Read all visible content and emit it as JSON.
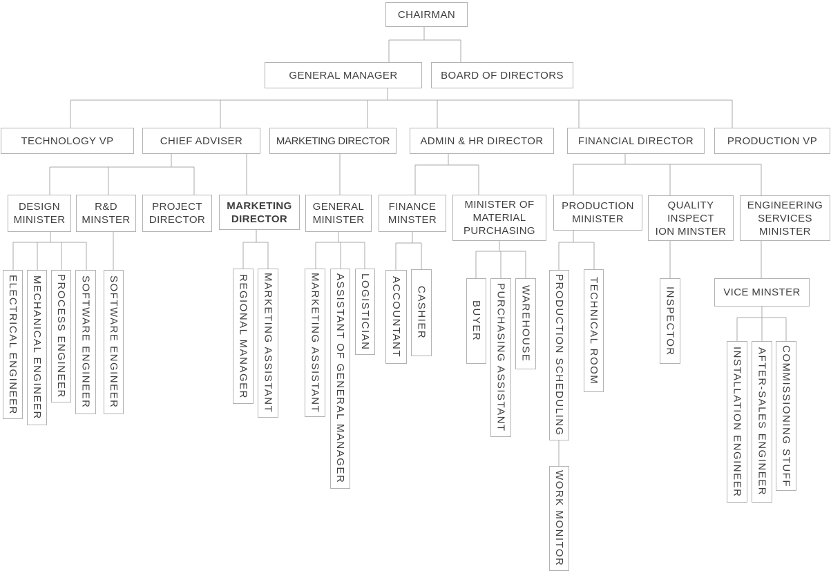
{
  "diagram": {
    "type": "org-chart",
    "colors": {
      "background": "#ffffff",
      "box_border": "#b2b2b2",
      "connector_line": "#a8a8a8",
      "text": "#3f3f3f"
    },
    "nodes": [
      {
        "id": "chairman",
        "label": "CHAIRMAN",
        "orientation": "horizontal"
      },
      {
        "id": "general-manager",
        "label": "GENERAL MANAGER",
        "orientation": "horizontal"
      },
      {
        "id": "board-of-directors",
        "label": "BOARD OF DIRECTORS",
        "orientation": "horizontal"
      },
      {
        "id": "technology-vp",
        "label": "TECHNOLOGY VP",
        "orientation": "horizontal"
      },
      {
        "id": "chief-adviser",
        "label": "CHIEF ADVISER",
        "orientation": "horizontal"
      },
      {
        "id": "marketing-director-top",
        "label": "MARKETING DIRECTOR",
        "orientation": "horizontal",
        "condensed": true
      },
      {
        "id": "admin-hr-director",
        "label": "ADMIN & HR DIRECTOR",
        "orientation": "horizontal"
      },
      {
        "id": "financial-director",
        "label": "FINANCIAL DIRECTOR",
        "orientation": "horizontal"
      },
      {
        "id": "production-vp",
        "label": "PRODUCTION VP",
        "orientation": "horizontal"
      },
      {
        "id": "design-minister",
        "label": "DESIGN\nMINISTER",
        "orientation": "horizontal"
      },
      {
        "id": "rd-minster",
        "label": "R&D\nMINSTER",
        "orientation": "horizontal"
      },
      {
        "id": "project-director",
        "label": "PROJECT\nDIRECTOR",
        "orientation": "horizontal"
      },
      {
        "id": "marketing-director",
        "label": "MARKETING\nDIRECTOR",
        "orientation": "horizontal",
        "bold": true
      },
      {
        "id": "general-minister",
        "label": "GENERAL\nMINISTER",
        "orientation": "horizontal"
      },
      {
        "id": "finance-minster",
        "label": "FINANCE\nMINSTER",
        "orientation": "horizontal"
      },
      {
        "id": "minister-of-material-purchasing",
        "label": "MINISTER OF\nMATERIAL\nPURCHASING",
        "orientation": "horizontal"
      },
      {
        "id": "production-minister",
        "label": "PRODUCTION\nMINISTER",
        "orientation": "horizontal"
      },
      {
        "id": "quality-inspection-minster",
        "label": "QUALITY\nINSPECT\nION MINSTER",
        "orientation": "horizontal"
      },
      {
        "id": "engineering-services-minister",
        "label": "ENGINEERING\nSERVICES\nMINISTER",
        "orientation": "horizontal"
      },
      {
        "id": "vice-minster",
        "label": "VICE MINSTER",
        "orientation": "horizontal"
      },
      {
        "id": "electrical-engineer",
        "label": "ELECTRICAL ENGINEER",
        "orientation": "vertical"
      },
      {
        "id": "mechanical-engineer",
        "label": "MECHANICAL ENGINEER",
        "orientation": "vertical"
      },
      {
        "id": "process-engineer",
        "label": "PROCESS ENGINEER",
        "orientation": "vertical"
      },
      {
        "id": "software-engineer-1",
        "label": "SOFTWARE ENGINEER",
        "orientation": "vertical"
      },
      {
        "id": "software-engineer-2",
        "label": "SOFTWARE ENGINEER",
        "orientation": "vertical"
      },
      {
        "id": "regional-manager",
        "label": "REGIONAL MANAGER",
        "orientation": "vertical"
      },
      {
        "id": "marketing-assistant-1",
        "label": "MARKETING ASSISTANT",
        "orientation": "vertical"
      },
      {
        "id": "marketing-assistant-2",
        "label": "MARKETING ASSISTANT",
        "orientation": "vertical"
      },
      {
        "id": "assistant-of-general-manager",
        "label": "ASSISTANT OF GENERAL MANAGER",
        "orientation": "vertical"
      },
      {
        "id": "logistician",
        "label": "LOGISTICIAN",
        "orientation": "vertical"
      },
      {
        "id": "accountant",
        "label": "ACCOUNTANT",
        "orientation": "vertical"
      },
      {
        "id": "cashier",
        "label": "CASHIER",
        "orientation": "vertical"
      },
      {
        "id": "buyer",
        "label": "BUYER",
        "orientation": "vertical"
      },
      {
        "id": "purchasing-assistant",
        "label": "PURCHASING ASSISTANT",
        "orientation": "vertical"
      },
      {
        "id": "warehouse",
        "label": "WAREHOUSE",
        "orientation": "vertical"
      },
      {
        "id": "production-scheduling",
        "label": "PRODUCTION SCHEDULING",
        "orientation": "vertical"
      },
      {
        "id": "technical-room",
        "label": "TECHNICAL ROOM",
        "orientation": "vertical"
      },
      {
        "id": "work-monitor",
        "label": "WORK MONITOR",
        "orientation": "vertical"
      },
      {
        "id": "inspector",
        "label": "INSPECTOR",
        "orientation": "vertical"
      },
      {
        "id": "installation-engineer",
        "label": "INSTALLATION ENGINEER",
        "orientation": "vertical"
      },
      {
        "id": "after-sales-engineer",
        "label": "AFTER-SALES ENGINEER",
        "orientation": "vertical"
      },
      {
        "id": "commissioning-stuff",
        "label": "COMMISSIONING STUFF",
        "orientation": "vertical"
      }
    ],
    "edges": [
      {
        "from": "chairman",
        "to": "general-manager"
      },
      {
        "from": "chairman",
        "to": "board-of-directors"
      },
      {
        "from": "general-manager",
        "to": "technology-vp"
      },
      {
        "from": "general-manager",
        "to": "chief-adviser"
      },
      {
        "from": "general-manager",
        "to": "marketing-director-top"
      },
      {
        "from": "general-manager",
        "to": "admin-hr-director"
      },
      {
        "from": "general-manager",
        "to": "financial-director"
      },
      {
        "from": "general-manager",
        "to": "production-vp"
      },
      {
        "from": "chief-adviser",
        "to": "design-minister"
      },
      {
        "from": "chief-adviser",
        "to": "rd-minster"
      },
      {
        "from": "chief-adviser",
        "to": "project-director"
      },
      {
        "from": "chief-adviser",
        "to": "marketing-director"
      },
      {
        "from": "marketing-director-top",
        "to": "general-minister"
      },
      {
        "from": "admin-hr-director",
        "to": "finance-minster"
      },
      {
        "from": "admin-hr-director",
        "to": "minister-of-material-purchasing"
      },
      {
        "from": "financial-director",
        "to": "production-minister"
      },
      {
        "from": "financial-director",
        "to": "quality-inspection-minster"
      },
      {
        "from": "financial-director",
        "to": "engineering-services-minister"
      },
      {
        "from": "design-minister",
        "to": "electrical-engineer"
      },
      {
        "from": "design-minister",
        "to": "mechanical-engineer"
      },
      {
        "from": "design-minister",
        "to": "process-engineer"
      },
      {
        "from": "design-minister",
        "to": "software-engineer-1"
      },
      {
        "from": "rd-minster",
        "to": "software-engineer-2"
      },
      {
        "from": "marketing-director",
        "to": "regional-manager"
      },
      {
        "from": "marketing-director",
        "to": "marketing-assistant-1"
      },
      {
        "from": "general-minister",
        "to": "marketing-assistant-2"
      },
      {
        "from": "general-minister",
        "to": "assistant-of-general-manager"
      },
      {
        "from": "general-minister",
        "to": "logistician"
      },
      {
        "from": "finance-minster",
        "to": "accountant"
      },
      {
        "from": "finance-minster",
        "to": "cashier"
      },
      {
        "from": "minister-of-material-purchasing",
        "to": "buyer"
      },
      {
        "from": "minister-of-material-purchasing",
        "to": "purchasing-assistant"
      },
      {
        "from": "minister-of-material-purchasing",
        "to": "warehouse"
      },
      {
        "from": "production-minister",
        "to": "production-scheduling"
      },
      {
        "from": "production-minister",
        "to": "technical-room"
      },
      {
        "from": "production-scheduling",
        "to": "work-monitor"
      },
      {
        "from": "quality-inspection-minster",
        "to": "inspector"
      },
      {
        "from": "engineering-services-minister",
        "to": "vice-minster"
      },
      {
        "from": "vice-minster",
        "to": "installation-engineer"
      },
      {
        "from": "vice-minster",
        "to": "after-sales-engineer"
      },
      {
        "from": "vice-minster",
        "to": "commissioning-stuff"
      }
    ]
  }
}
